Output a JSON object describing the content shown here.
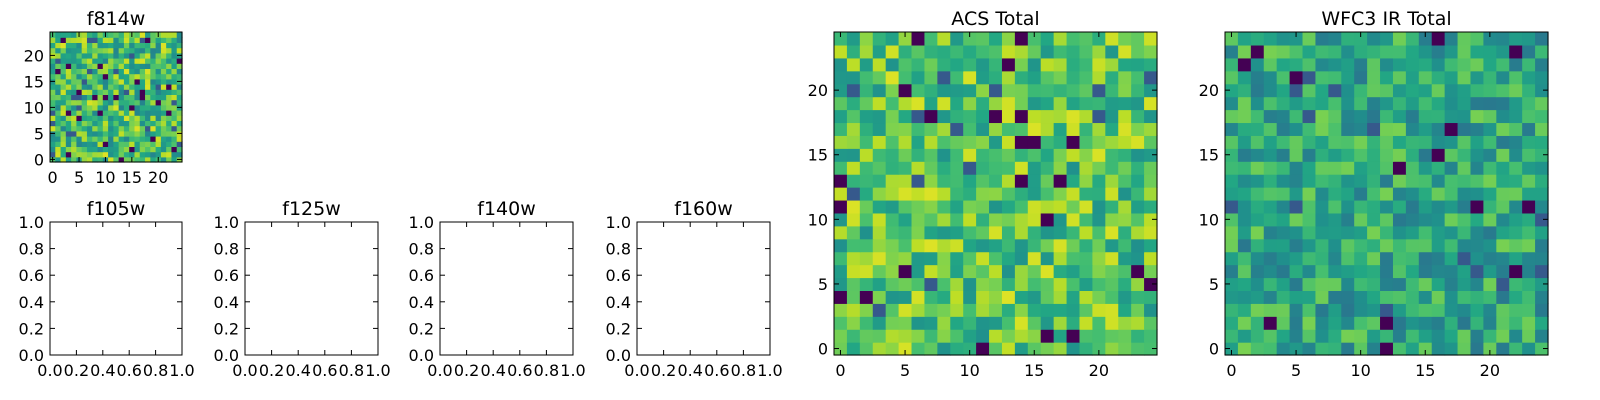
{
  "chart_data": [
    {
      "type": "heatmap",
      "title": "f814w",
      "image_size": [
        25,
        25
      ],
      "xlim": [
        -0.5,
        24.5
      ],
      "ylim": [
        -0.5,
        24.5
      ],
      "xticks": [
        0,
        5,
        10,
        15,
        20
      ],
      "yticks": [
        0,
        5,
        10,
        15,
        20
      ],
      "colormap": "viridis",
      "has_image": true,
      "image_seed": 814,
      "image_level_range": [
        0.45,
        0.95
      ]
    },
    {
      "type": "heatmap",
      "title": "f105w",
      "xlim": [
        0.0,
        1.0
      ],
      "ylim": [
        0.0,
        1.0
      ],
      "xticks": [
        "0.0",
        "0.2",
        "0.4",
        "0.6",
        "0.8",
        "1.0"
      ],
      "yticks": [
        "0.0",
        "0.2",
        "0.4",
        "0.6",
        "0.8",
        "1.0"
      ],
      "has_image": false
    },
    {
      "type": "heatmap",
      "title": "f125w",
      "xlim": [
        0.0,
        1.0
      ],
      "ylim": [
        0.0,
        1.0
      ],
      "xticks": [
        "0.0",
        "0.2",
        "0.4",
        "0.6",
        "0.8",
        "1.0"
      ],
      "yticks": [
        "0.0",
        "0.2",
        "0.4",
        "0.6",
        "0.8",
        "1.0"
      ],
      "has_image": false
    },
    {
      "type": "heatmap",
      "title": "f140w",
      "xlim": [
        0.0,
        1.0
      ],
      "ylim": [
        0.0,
        1.0
      ],
      "xticks": [
        "0.0",
        "0.2",
        "0.4",
        "0.6",
        "0.8",
        "1.0"
      ],
      "yticks": [
        "0.0",
        "0.2",
        "0.4",
        "0.6",
        "0.8",
        "1.0"
      ],
      "has_image": false
    },
    {
      "type": "heatmap",
      "title": "f160w",
      "xlim": [
        0.0,
        1.0
      ],
      "ylim": [
        0.0,
        1.0
      ],
      "xticks": [
        "0.0",
        "0.2",
        "0.4",
        "0.6",
        "0.8",
        "1.0"
      ],
      "yticks": [
        "0.0",
        "0.2",
        "0.4",
        "0.6",
        "0.8",
        "1.0"
      ],
      "has_image": false
    },
    {
      "type": "heatmap",
      "title": "ACS Total",
      "image_size": [
        25,
        25
      ],
      "xlim": [
        -0.5,
        24.5
      ],
      "ylim": [
        -0.5,
        24.5
      ],
      "xticks": [
        0,
        5,
        10,
        15,
        20
      ],
      "yticks": [
        0,
        5,
        10,
        15,
        20
      ],
      "colormap": "viridis",
      "has_image": true,
      "image_seed": 1001,
      "image_level_range": [
        0.5,
        0.95
      ]
    },
    {
      "type": "heatmap",
      "title": "WFC3 IR Total",
      "image_size": [
        25,
        25
      ],
      "xlim": [
        -0.5,
        24.5
      ],
      "ylim": [
        -0.5,
        24.5
      ],
      "xticks": [
        0,
        5,
        10,
        15,
        20
      ],
      "yticks": [
        0,
        5,
        10,
        15,
        20
      ],
      "colormap": "viridis",
      "has_image": true,
      "image_seed": 3003,
      "image_level_range": [
        0.4,
        0.8
      ]
    }
  ]
}
